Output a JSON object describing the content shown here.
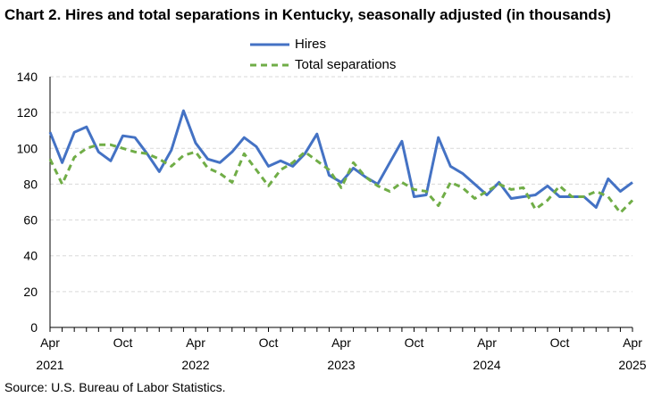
{
  "title": "Chart 2. Hires and total separations in Kentucky, seasonally adjusted (in thousands)",
  "source": "Source: U.S. Bureau of Labor Statistics.",
  "colors": {
    "hires": "#4472c4",
    "separations": "#70ad47",
    "grid": "#d9d9d9",
    "axis": "#000000"
  },
  "chart_data": {
    "type": "line",
    "title": "Chart 2. Hires and total separations in Kentucky, seasonally adjusted (in thousands)",
    "xlabel": "",
    "ylabel": "",
    "ylim": [
      0,
      140
    ],
    "yticks": [
      0,
      20,
      40,
      60,
      80,
      100,
      120,
      140
    ],
    "grid": true,
    "legend_position": "top-center",
    "x": [
      "Apr 2021",
      "May 2021",
      "Jun 2021",
      "Jul 2021",
      "Aug 2021",
      "Sep 2021",
      "Oct 2021",
      "Nov 2021",
      "Dec 2021",
      "Jan 2022",
      "Feb 2022",
      "Mar 2022",
      "Apr 2022",
      "May 2022",
      "Jun 2022",
      "Jul 2022",
      "Aug 2022",
      "Sep 2022",
      "Oct 2022",
      "Nov 2022",
      "Dec 2022",
      "Jan 2023",
      "Feb 2023",
      "Mar 2023",
      "Apr 2023",
      "May 2023",
      "Jun 2023",
      "Jul 2023",
      "Aug 2023",
      "Sep 2023",
      "Oct 2023",
      "Nov 2023",
      "Dec 2023",
      "Jan 2024",
      "Feb 2024",
      "Mar 2024",
      "Apr 2024",
      "May 2024",
      "Jun 2024",
      "Jul 2024",
      "Aug 2024",
      "Sep 2024",
      "Oct 2024",
      "Nov 2024",
      "Dec 2024",
      "Jan 2025",
      "Feb 2025",
      "Mar 2025",
      "Apr 2025"
    ],
    "xtick_labels": [
      {
        "month": "Apr",
        "year": "2021",
        "index": 0
      },
      {
        "month": "Oct",
        "year": "",
        "index": 6
      },
      {
        "month": "Apr",
        "year": "2022",
        "index": 12
      },
      {
        "month": "Oct",
        "year": "",
        "index": 18
      },
      {
        "month": "Apr",
        "year": "2023",
        "index": 24
      },
      {
        "month": "Oct",
        "year": "",
        "index": 30
      },
      {
        "month": "Apr",
        "year": "2024",
        "index": 36
      },
      {
        "month": "Oct",
        "year": "",
        "index": 42
      },
      {
        "month": "Apr",
        "year": "2025",
        "index": 48
      }
    ],
    "series": [
      {
        "name": "Hires",
        "style": "solid",
        "values": [
          109,
          92,
          109,
          112,
          98,
          93,
          107,
          106,
          97,
          87,
          99,
          121,
          103,
          94,
          92,
          98,
          106,
          101,
          90,
          93,
          90,
          97,
          108,
          85,
          81,
          89,
          84,
          80,
          92,
          104,
          73,
          74,
          106,
          90,
          86,
          80,
          74,
          81,
          72,
          73,
          74,
          79,
          73,
          73,
          73,
          67,
          83,
          76,
          81
        ]
      },
      {
        "name": "Total separations",
        "style": "dashed",
        "values": [
          94,
          80,
          95,
          100,
          102,
          102,
          100,
          98,
          97,
          94,
          90,
          96,
          98,
          89,
          86,
          81,
          97,
          88,
          79,
          88,
          92,
          98,
          93,
          88,
          78,
          92,
          84,
          79,
          76,
          81,
          77,
          76,
          68,
          81,
          78,
          72,
          76,
          80,
          77,
          78,
          66,
          71,
          79,
          73,
          73,
          76,
          73,
          64,
          71
        ]
      }
    ]
  }
}
